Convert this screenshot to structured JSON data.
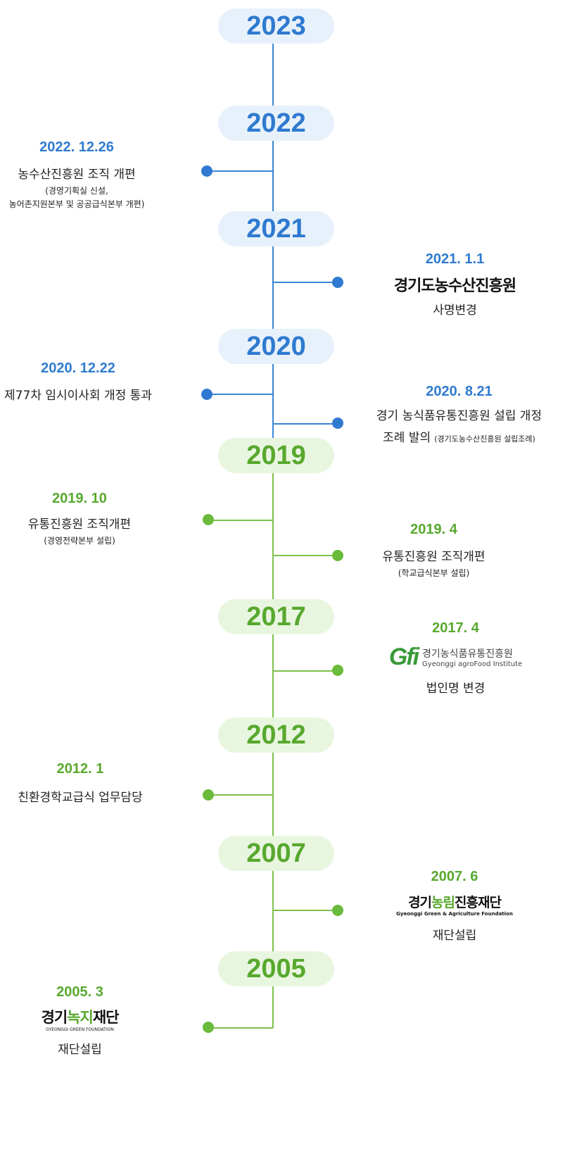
{
  "years": [
    "2023",
    "2022",
    "2021",
    "2020",
    "2019",
    "2017",
    "2012",
    "2007",
    "2005"
  ],
  "events": {
    "e2022_12": {
      "date": "2022. 12.26",
      "title": "농수산진흥원 조직 개편",
      "sub1": "(경영기획실 신설,",
      "sub2": "농어촌지원본부 및 공공급식본부 개편)"
    },
    "e2021_1": {
      "date": "2021. 1.1",
      "logo": "경기도농수산진흥원",
      "title": "사명변경"
    },
    "e2020_12": {
      "date": "2020. 12.22",
      "title": "제77차 임시이사회 개정 통과"
    },
    "e2020_8": {
      "date": "2020. 8.21",
      "title": "경기 농식품유통진흥원 설립 개정",
      "title2": "조례 발의",
      "sub": "(경기도농수산진흥원 설립조례)"
    },
    "e2019_10": {
      "date": "2019. 10",
      "title": "유통진흥원 조직개편",
      "sub": "(경영전략본부 설립)"
    },
    "e2019_4": {
      "date": "2019. 4",
      "title": "유통진흥원 조직개편",
      "sub": "(학교급식본부 설립)"
    },
    "e2017_4": {
      "date": "2017. 4",
      "logo_mark": "Gfi",
      "logo_kr": "경기농식품유통진흥원",
      "logo_en": "Gyeonggi agroFood Institute",
      "title": "법인명 변경"
    },
    "e2012_1": {
      "date": "2012. 1",
      "title": "친환경학교급식 업무담당"
    },
    "e2007_6": {
      "date": "2007. 6",
      "logo_kr_a": "경기",
      "logo_kr_b": "농림",
      "logo_kr_c": "진흥재단",
      "logo_en": "Gyeonggi Green & Agriculture Foundation",
      "title": "재단설립"
    },
    "e2005_3": {
      "date": "2005. 3",
      "logo_kr_a": "경기",
      "logo_kr_b": "녹지",
      "logo_kr_c": "재단",
      "logo_en": "GYEONGGI GREEN FOUNDATION",
      "title": "재단설립"
    }
  },
  "colors": {
    "blue": "#2f7ad0",
    "green": "#58a82e"
  }
}
